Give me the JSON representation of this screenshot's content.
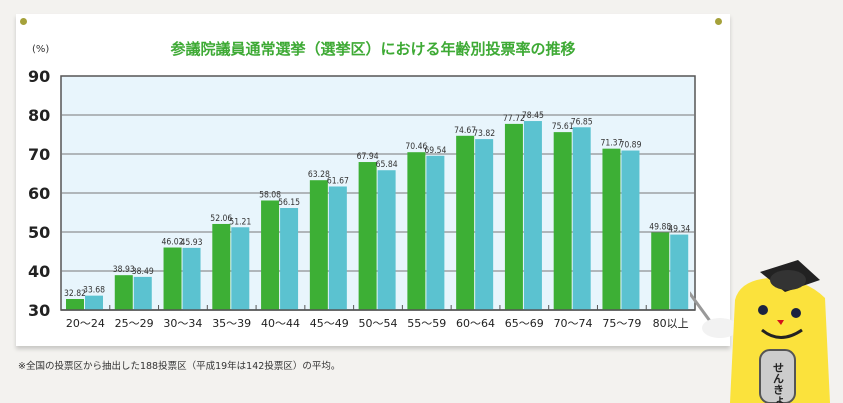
{
  "chart_data": {
    "type": "bar",
    "title": "参議院議員通常選挙（選挙区）における年齢別投票率の推移",
    "ylabel": "(%)",
    "ylim": [
      30,
      90
    ],
    "yticks": [
      "30",
      "40",
      "50",
      "60",
      "70",
      "80",
      "90"
    ],
    "grid": true,
    "categories": [
      "20～24",
      "25～29",
      "30～34",
      "35～39",
      "40～44",
      "45～49",
      "50～54",
      "55～59",
      "60～64",
      "65～69",
      "70～74",
      "75～79",
      "80以上"
    ],
    "series": [
      {
        "color": "#3daf35",
        "values": [
          32.82,
          38.93,
          46.02,
          52.06,
          58.08,
          63.28,
          67.94,
          70.46,
          74.67,
          77.72,
          75.61,
          71.37,
          49.88
        ],
        "labels": [
          "32.82",
          "38.93",
          "46.02",
          "52.06",
          "58.08",
          "63.28",
          "67.94",
          "70.46",
          "74.67",
          "77.72",
          "75.61",
          "71.37",
          "49.88"
        ]
      },
      {
        "color": "#5bc2d0",
        "values": [
          33.68,
          38.49,
          45.93,
          51.21,
          56.15,
          61.67,
          65.84,
          69.54,
          73.82,
          78.45,
          76.85,
          70.89,
          49.34
        ],
        "labels": [
          "33.68",
          "38.49",
          "45.93",
          "51.21",
          "56.15",
          "61.67",
          "65.84",
          "69.54",
          "73.82",
          "78.45",
          "76.85",
          "70.89",
          "49.34"
        ]
      }
    ],
    "plot_background": "#e8f5fc",
    "footnote": "※全国の投票区から抽出した188投票区（平成19年は142投票区）の平均。"
  },
  "mascot": {
    "badge_text": "せんきょ"
  }
}
